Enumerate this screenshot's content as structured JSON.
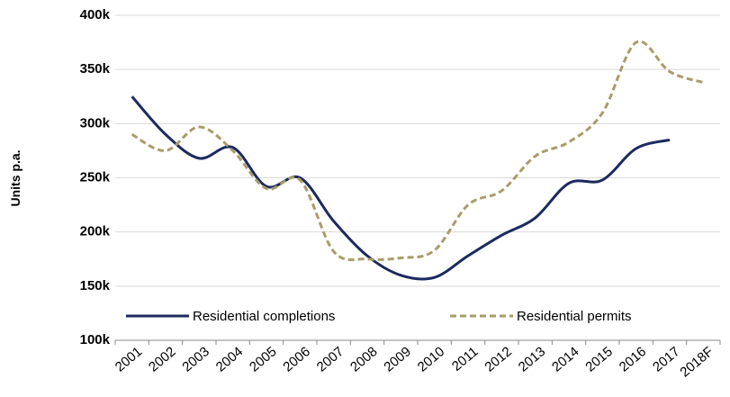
{
  "chart_data": {
    "type": "line",
    "y_label": "Units p.a.",
    "categories": [
      "2001",
      "2002",
      "2003",
      "2004",
      "2005",
      "2006",
      "2007",
      "2008",
      "2009",
      "2010",
      "2011",
      "2012",
      "2013",
      "2014",
      "2015",
      "2016",
      "2017",
      "2018F"
    ],
    "series": [
      {
        "name": "Residential completions",
        "color": "#1b2a5e",
        "dashed": false,
        "values": [
          325000,
          290000,
          268000,
          278000,
          242000,
          250000,
          210000,
          178000,
          160000,
          158000,
          178000,
          197000,
          213000,
          245000,
          248000,
          277000,
          285000,
          null
        ]
      },
      {
        "name": "Residential permits",
        "color": "#a89c6a",
        "dashed": true,
        "values": [
          290000,
          275000,
          297000,
          275000,
          240000,
          248000,
          182000,
          175000,
          176000,
          183000,
          225000,
          238000,
          270000,
          283000,
          310000,
          375000,
          348000,
          338000
        ]
      }
    ],
    "ylim": [
      100000,
      400000
    ],
    "yticks": [
      {
        "value": 100000,
        "label": "100k"
      },
      {
        "value": 150000,
        "label": "150k"
      },
      {
        "value": 200000,
        "label": "200k"
      },
      {
        "value": 250000,
        "label": "250k"
      },
      {
        "value": 300000,
        "label": "300k"
      },
      {
        "value": 350000,
        "label": "350k"
      },
      {
        "value": 400000,
        "label": "400k"
      }
    ],
    "grid": true,
    "legend": "bottom"
  }
}
